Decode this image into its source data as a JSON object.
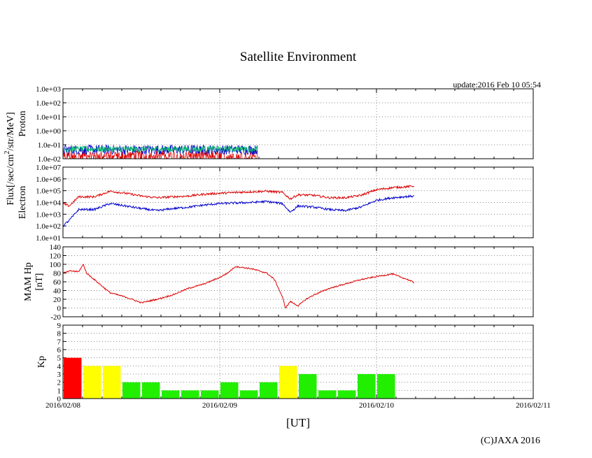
{
  "title": "Satellite Environment",
  "update": "update:2016 Feb 10 05:54",
  "credit": "(C)JAXA 2016",
  "xlabel": "[UT]",
  "flux_label_parts": [
    "Flux[/sec/cm",
    "2",
    "/str/MeV]"
  ],
  "x_ticks": [
    "2016/02/08",
    "2016/02/09",
    "2016/02/10",
    "2016/02/11"
  ],
  "colors": {
    "red": "#dd0000",
    "blue": "#0000cc",
    "green": "#00bb66",
    "kp_red": "#ff0000",
    "kp_yellow": "#ffff00",
    "kp_green": "#22ee00",
    "grid": "#888888"
  },
  "chart_data": [
    {
      "type": "line",
      "panel": "proton",
      "ylabel": "Proton",
      "yscale": "log",
      "ylim": [
        0.01,
        1000
      ],
      "y_ticks": [
        "1.0e-02",
        "1.0e-01",
        "1.0e+00",
        "1.0e+01",
        "1.0e+02",
        "1.0e+03"
      ],
      "xlim_days": [
        0,
        3
      ],
      "x_end_days": 1.24,
      "series": [
        {
          "color": "red",
          "min": 0.01,
          "max": 0.04
        },
        {
          "color": "blue",
          "min": 0.02,
          "max": 0.1
        },
        {
          "color": "green",
          "min": 0.03,
          "max": 0.08
        }
      ]
    },
    {
      "type": "line",
      "panel": "electron",
      "ylabel": "Electron",
      "yscale": "log",
      "ylim": [
        10,
        10000000
      ],
      "y_ticks": [
        "1.0e+01",
        "1.0e+02",
        "1.0e+03",
        "1.0e+04",
        "1.0e+05",
        "1.0e+06",
        "1.0e+07"
      ],
      "series": [
        {
          "color": "red",
          "x": [
            0,
            0.04,
            0.1,
            0.2,
            0.3,
            0.4,
            0.5,
            0.6,
            0.7,
            0.8,
            0.9,
            1.0,
            1.1,
            1.2,
            1.3,
            1.4,
            1.45,
            1.5,
            1.6,
            1.7,
            1.8,
            1.9,
            2.0,
            2.1,
            2.2,
            2.24
          ],
          "y": [
            8000,
            5000,
            30000,
            30000,
            90000,
            60000,
            35000,
            25000,
            30000,
            35000,
            50000,
            60000,
            70000,
            80000,
            90000,
            70000,
            20000,
            45000,
            40000,
            25000,
            25000,
            40000,
            120000,
            180000,
            220000,
            250000
          ]
        },
        {
          "color": "blue",
          "x": [
            0,
            0.04,
            0.1,
            0.2,
            0.3,
            0.4,
            0.5,
            0.6,
            0.7,
            0.8,
            0.9,
            1.0,
            1.1,
            1.2,
            1.3,
            1.4,
            1.45,
            1.5,
            1.6,
            1.7,
            1.8,
            1.9,
            2.0,
            2.1,
            2.2,
            2.24
          ],
          "y": [
            100,
            300,
            2500,
            2500,
            8000,
            5000,
            3000,
            2000,
            3000,
            4000,
            6000,
            8000,
            9000,
            10000,
            12000,
            8000,
            1500,
            5000,
            4000,
            2500,
            2000,
            4000,
            15000,
            25000,
            32000,
            35000
          ]
        }
      ]
    },
    {
      "type": "line",
      "panel": "mam-hp",
      "ylabel": "MAM Hp",
      "ylabel2": "[nT]",
      "ylim": [
        -20,
        140
      ],
      "y_ticks": [
        "-20",
        "0",
        "20",
        "40",
        "60",
        "80",
        "100",
        "120",
        "140"
      ],
      "series": [
        {
          "color": "red",
          "x": [
            0,
            0.05,
            0.1,
            0.13,
            0.15,
            0.2,
            0.25,
            0.3,
            0.4,
            0.5,
            0.6,
            0.7,
            0.8,
            0.9,
            1.0,
            1.05,
            1.1,
            1.2,
            1.3,
            1.35,
            1.4,
            1.42,
            1.45,
            1.5,
            1.55,
            1.6,
            1.7,
            1.8,
            1.9,
            2.0,
            2.1,
            2.2,
            2.24
          ],
          "y": [
            80,
            85,
            83,
            100,
            80,
            65,
            50,
            35,
            25,
            12,
            20,
            30,
            45,
            55,
            70,
            80,
            95,
            90,
            80,
            65,
            25,
            0,
            15,
            5,
            20,
            30,
            45,
            55,
            65,
            72,
            78,
            65,
            58
          ]
        }
      ]
    },
    {
      "type": "bar",
      "panel": "kp",
      "ylabel": "Kp",
      "ylim": [
        0,
        9
      ],
      "y_ticks": [
        "0",
        "1",
        "2",
        "3",
        "4",
        "5",
        "6",
        "7",
        "8",
        "9"
      ],
      "bar_interval_hours": 3,
      "values": [
        5,
        4,
        4,
        2,
        2,
        1,
        1,
        1,
        2,
        1,
        2,
        4,
        3,
        1,
        1,
        3,
        3
      ],
      "bar_colors": [
        "kp_red",
        "kp_yellow",
        "kp_yellow",
        "kp_green",
        "kp_green",
        "kp_green",
        "kp_green",
        "kp_green",
        "kp_green",
        "kp_green",
        "kp_green",
        "kp_yellow",
        "kp_green",
        "kp_green",
        "kp_green",
        "kp_green",
        "kp_green"
      ]
    }
  ]
}
